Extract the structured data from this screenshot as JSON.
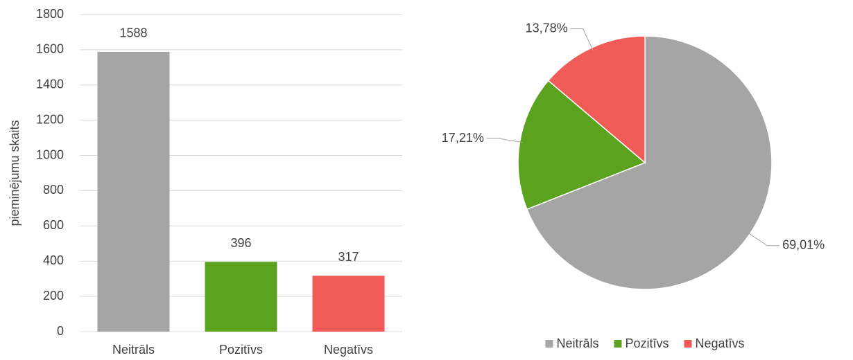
{
  "chart_data": [
    {
      "type": "bar",
      "categories": [
        "Neitrāls",
        "Pozitīvs",
        "Negatīvs"
      ],
      "values": [
        1588,
        396,
        317
      ],
      "colors": [
        "#a5a5a5",
        "#5ba31f",
        "#f05b57"
      ],
      "y_label": "pieminējumu skaits",
      "ylim": [
        0,
        1800
      ],
      "yticks": [
        0,
        200,
        400,
        600,
        800,
        1000,
        1200,
        1400,
        1600,
        1800
      ],
      "grid": true
    },
    {
      "type": "pie",
      "categories": [
        "Neitrāls",
        "Pozitīvs",
        "Negatīvs"
      ],
      "values": [
        69.01,
        17.21,
        13.78
      ],
      "value_labels": [
        "69,01%",
        "17,21%",
        "13,78%"
      ],
      "colors": [
        "#a5a5a5",
        "#5ba31f",
        "#f05b57"
      ],
      "legend": "bottom"
    }
  ]
}
